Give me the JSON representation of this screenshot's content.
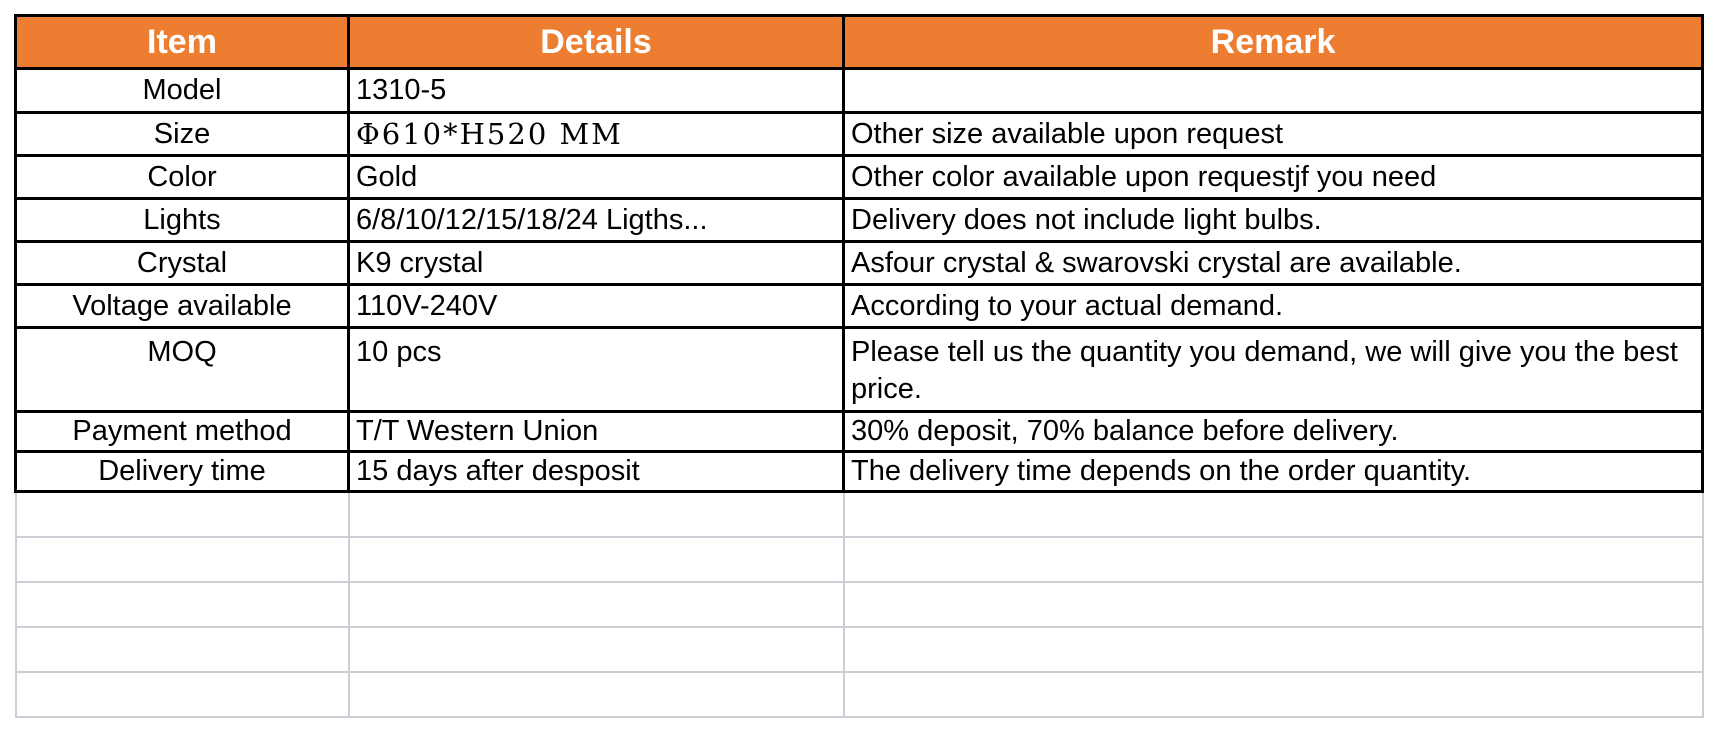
{
  "accent_color": "#ED7D31",
  "grid_color": "#CBCFD5",
  "table": {
    "headers": {
      "item": "Item",
      "details": "Details",
      "remark": "Remark"
    },
    "rows": [
      {
        "item": "Model",
        "details": "1310-5",
        "remark": ""
      },
      {
        "item": "Size",
        "details": "Φ610*H520 MM",
        "remark": "Other size available upon request"
      },
      {
        "item": "Color",
        "details": "Gold",
        "remark": "Other color available upon requestjf you need"
      },
      {
        "item": "Lights",
        "details": "6/8/10/12/15/18/24 Ligths...",
        "remark": "Delivery does not include light bulbs."
      },
      {
        "item": "Crystal",
        "details": "K9 crystal",
        "remark": "Asfour crystal & swarovski crystal are available."
      },
      {
        "item": "Voltage available",
        "details": "110V-240V",
        "remark": "According to your actual demand."
      },
      {
        "item": "MOQ",
        "details": "10 pcs",
        "remark": "Please tell us the quantity you demand, we will give you the best price."
      },
      {
        "item": "Payment method",
        "details": "T/T Western Union",
        "remark": "30% deposit, 70% balance before delivery."
      },
      {
        "item": "Delivery time",
        "details": "15 days after desposit",
        "remark": "The delivery time depends on the order quantity."
      }
    ],
    "empty_row_count": 5
  }
}
